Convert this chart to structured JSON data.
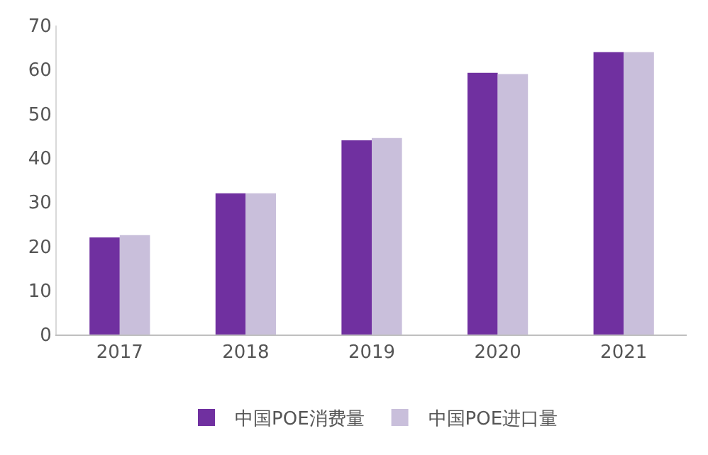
{
  "chart_data": {
    "type": "bar",
    "categories": [
      "2017",
      "2018",
      "2019",
      "2020",
      "2021"
    ],
    "series": [
      {
        "name": "中国POE消费量",
        "color": "#7030a0",
        "values": [
          22,
          32,
          44,
          59.3,
          64
        ]
      },
      {
        "name": "中国POE进口量",
        "color": "#c9bfdb",
        "values": [
          22.5,
          32,
          44.5,
          59,
          64
        ]
      }
    ],
    "ylim": [
      0,
      70
    ],
    "yticks": [
      0,
      10,
      20,
      30,
      40,
      50,
      60,
      70
    ],
    "grid": false,
    "legend": "bottom"
  }
}
